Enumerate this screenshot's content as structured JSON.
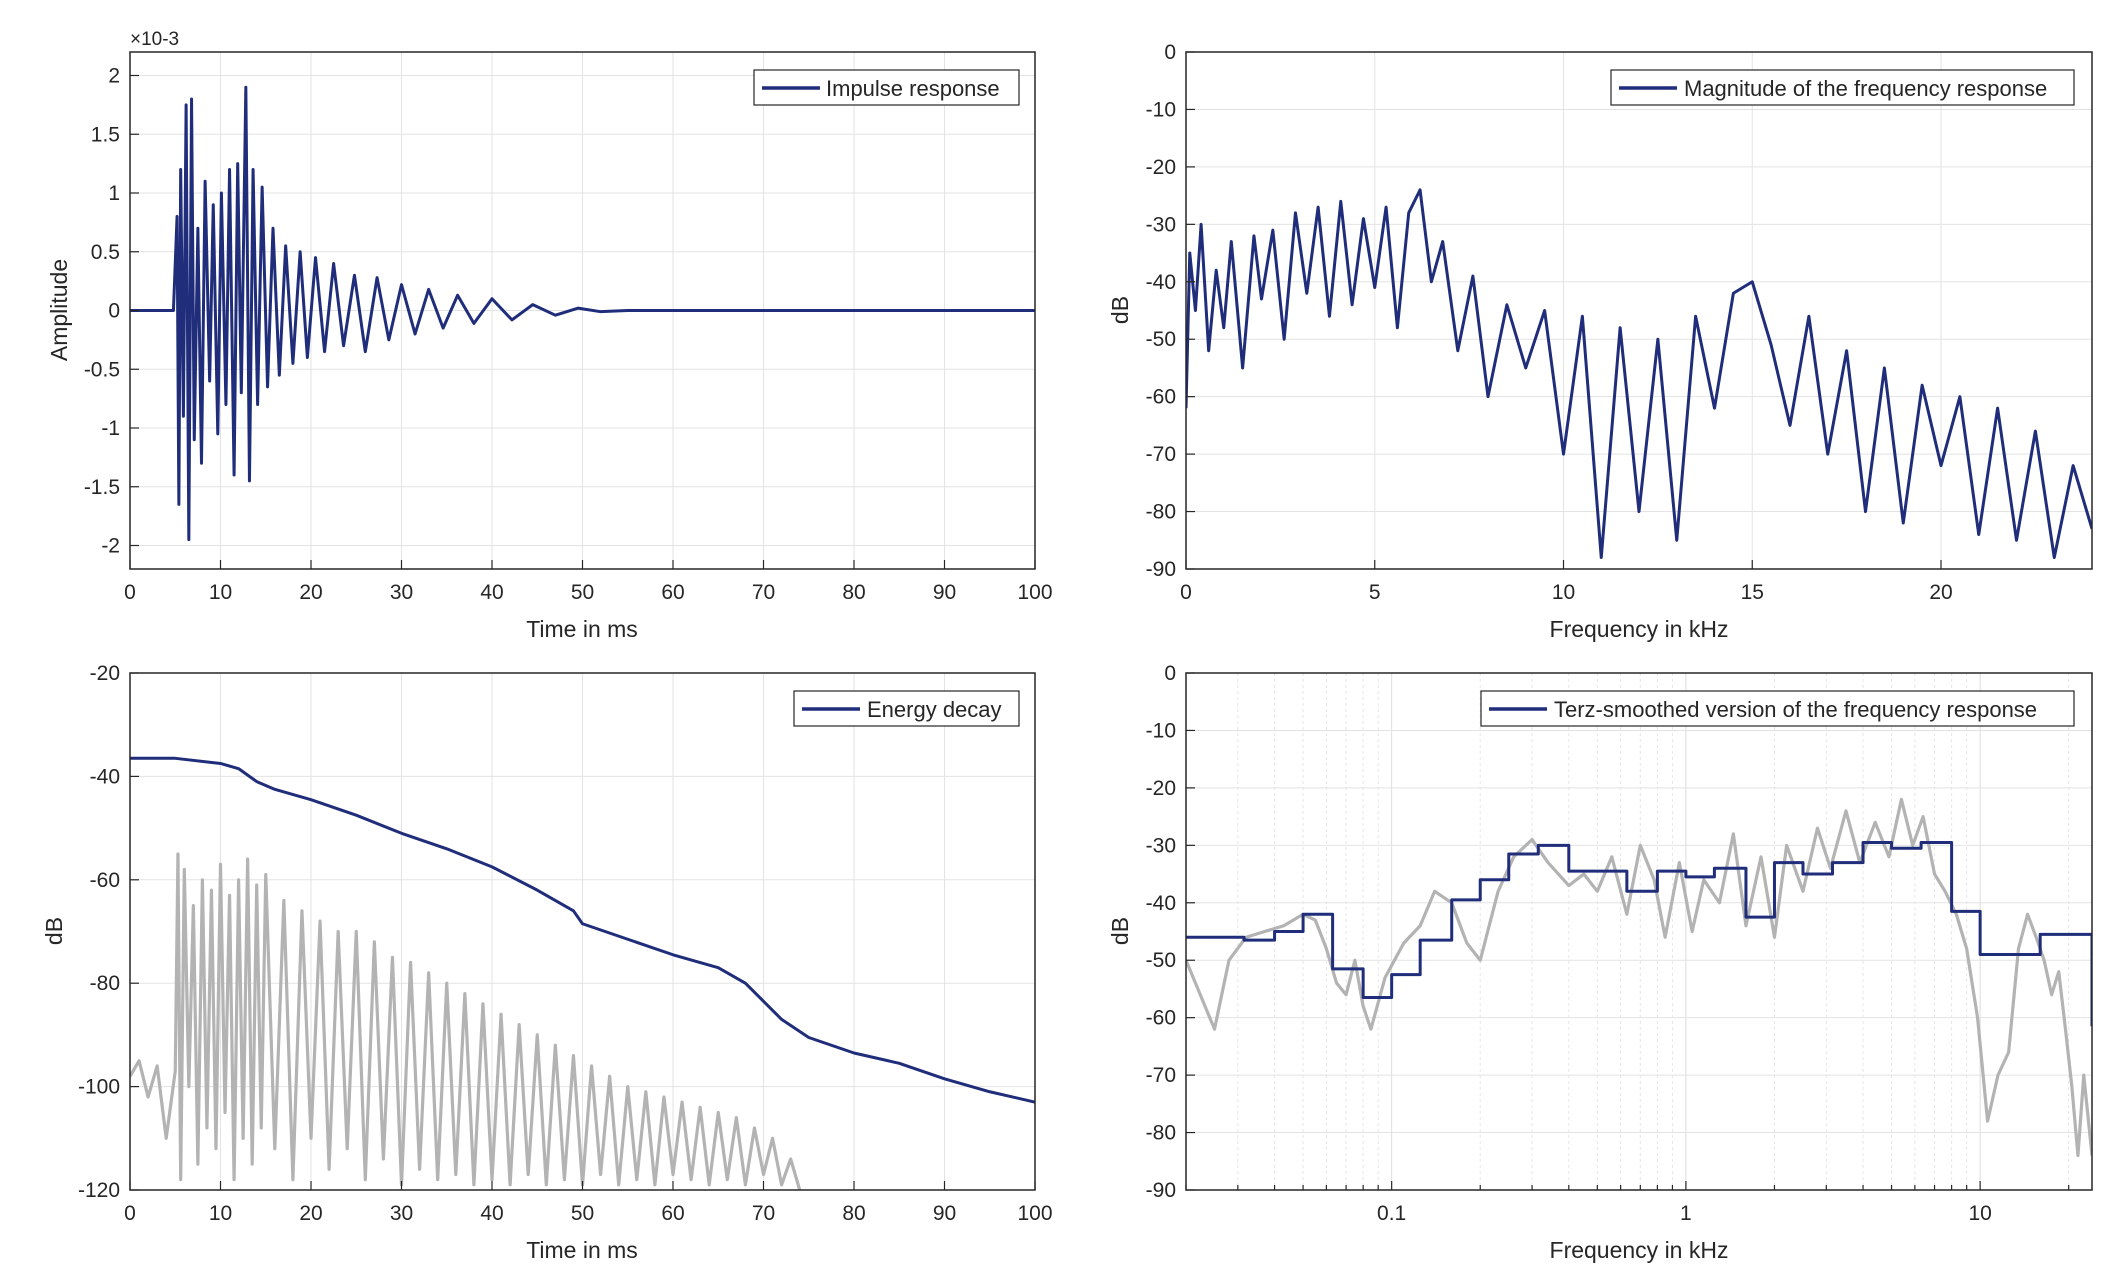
{
  "colors": {
    "series": "#1f2d7a",
    "trace": "#b3b3b3",
    "grid": "#e3e3e3",
    "axis": "#262626"
  },
  "chart_data": [
    {
      "id": "impulse",
      "type": "line",
      "xlabel": "Time in ms",
      "ylabel": "Amplitude",
      "exponent": "×10-3",
      "xlim": [
        0,
        100
      ],
      "ylim": [
        -2.2,
        2.2
      ],
      "xscale": "linear",
      "grid": true,
      "legend_position": "top-right",
      "xticks": [
        0,
        10,
        20,
        30,
        40,
        50,
        60,
        70,
        80,
        90,
        100
      ],
      "xtick_labels": [
        "0",
        "10",
        "20",
        "30",
        "40",
        "50",
        "60",
        "70",
        "80",
        "90",
        "100"
      ],
      "yticks": [
        2,
        1.5,
        1,
        0.5,
        0,
        -0.5,
        -1,
        -1.5,
        -2
      ],
      "ytick_labels": [
        "2",
        "1.5",
        "1",
        "0.5",
        "0",
        "-0.5",
        "-1",
        "-1.5",
        "-2"
      ],
      "series": [
        {
          "name": "Impulse response",
          "color": "#1f2d7a",
          "x": [
            0,
            4.8,
            5.2,
            5.4,
            5.6,
            5.9,
            6.2,
            6.5,
            6.8,
            7.1,
            7.5,
            7.9,
            8.3,
            8.8,
            9.2,
            9.7,
            10.1,
            10.6,
            11.0,
            11.5,
            11.9,
            12.3,
            12.8,
            13.2,
            13.6,
            14.1,
            14.6,
            15.2,
            15.8,
            16.5,
            17.2,
            18.0,
            18.8,
            19.6,
            20.5,
            21.5,
            22.5,
            23.6,
            24.8,
            26.0,
            27.3,
            28.6,
            30.0,
            31.5,
            33.0,
            34.6,
            36.2,
            38.0,
            40.0,
            42.2,
            44.5,
            47.0,
            49.5,
            52.0,
            55,
            60,
            70,
            80,
            90,
            100
          ],
          "y": [
            0.0,
            0.0,
            0.8,
            -1.65,
            1.2,
            -0.9,
            1.75,
            -1.95,
            1.8,
            -1.1,
            0.7,
            -1.3,
            1.1,
            -0.6,
            0.9,
            -1.05,
            1.0,
            -0.8,
            1.2,
            -1.4,
            1.25,
            -0.7,
            1.9,
            -1.45,
            1.2,
            -0.8,
            1.05,
            -0.65,
            0.7,
            -0.55,
            0.55,
            -0.45,
            0.5,
            -0.4,
            0.45,
            -0.35,
            0.4,
            -0.3,
            0.3,
            -0.35,
            0.28,
            -0.25,
            0.22,
            -0.2,
            0.18,
            -0.15,
            0.13,
            -0.11,
            0.1,
            -0.08,
            0.05,
            -0.04,
            0.02,
            -0.01,
            0.0,
            0.0,
            0.0,
            0.0,
            0.0,
            0.0
          ]
        }
      ]
    },
    {
      "id": "magnitude",
      "type": "line",
      "xlabel": "Frequency in kHz",
      "ylabel": "dB",
      "xlim": [
        0,
        24
      ],
      "ylim": [
        -90,
        0
      ],
      "xscale": "linear",
      "grid": true,
      "legend_position": "top-right",
      "xticks": [
        0,
        5,
        10,
        15,
        20
      ],
      "xtick_labels": [
        "0",
        "5",
        "10",
        "15",
        "20"
      ],
      "yticks": [
        0,
        -10,
        -20,
        -30,
        -40,
        -50,
        -60,
        -70,
        -80,
        -90
      ],
      "ytick_labels": [
        "0",
        "-10",
        "-20",
        "-30",
        "-40",
        "-50",
        "-60",
        "-70",
        "-80",
        "-90"
      ],
      "series": [
        {
          "name": "Magnitude of the frequency response",
          "color": "#1f2d7a",
          "x": [
            0,
            0.1,
            0.25,
            0.4,
            0.6,
            0.8,
            1.0,
            1.2,
            1.5,
            1.8,
            2.0,
            2.3,
            2.6,
            2.9,
            3.2,
            3.5,
            3.8,
            4.1,
            4.4,
            4.7,
            5.0,
            5.3,
            5.6,
            5.9,
            6.2,
            6.5,
            6.8,
            7.2,
            7.6,
            8.0,
            8.5,
            9.0,
            9.5,
            10.0,
            10.5,
            11.0,
            11.5,
            12.0,
            12.5,
            13.0,
            13.5,
            14.0,
            14.5,
            15.0,
            15.5,
            16.0,
            16.5,
            17.0,
            17.5,
            18.0,
            18.5,
            19.0,
            19.5,
            20.0,
            20.5,
            21.0,
            21.5,
            22.0,
            22.5,
            23.0,
            23.5,
            24.0
          ],
          "y": [
            -62,
            -35,
            -45,
            -30,
            -52,
            -38,
            -48,
            -33,
            -55,
            -32,
            -43,
            -31,
            -50,
            -28,
            -42,
            -27,
            -46,
            -26,
            -44,
            -29,
            -41,
            -27,
            -48,
            -28,
            -24,
            -40,
            -33,
            -52,
            -39,
            -60,
            -44,
            -55,
            -45,
            -70,
            -46,
            -88,
            -48,
            -80,
            -50,
            -85,
            -46,
            -62,
            -42,
            -40,
            -51,
            -65,
            -46,
            -70,
            -52,
            -80,
            -55,
            -82,
            -58,
            -72,
            -60,
            -84,
            -62,
            -85,
            -66,
            -88,
            -72,
            -83
          ]
        }
      ]
    },
    {
      "id": "energy",
      "type": "line",
      "xlabel": "Time in ms",
      "ylabel": "dB",
      "xlim": [
        0,
        100
      ],
      "ylim": [
        -120,
        -20
      ],
      "xscale": "linear",
      "grid": true,
      "legend_position": "top-right",
      "xticks": [
        0,
        10,
        20,
        30,
        40,
        50,
        60,
        70,
        80,
        90,
        100
      ],
      "xtick_labels": [
        "0",
        "10",
        "20",
        "30",
        "40",
        "50",
        "60",
        "70",
        "80",
        "90",
        "100"
      ],
      "yticks": [
        -20,
        -40,
        -60,
        -80,
        -100,
        -120
      ],
      "ytick_labels": [
        "-20",
        "-40",
        "-60",
        "-80",
        "-100",
        "-120"
      ],
      "series": [
        {
          "name": "Energy decay",
          "color": "#1f2d7a",
          "x": [
            0,
            5,
            10,
            12,
            14,
            16,
            20,
            25,
            30,
            35,
            40,
            45,
            49,
            50,
            55,
            60,
            63,
            65,
            68,
            70,
            72,
            75,
            80,
            85,
            90,
            95,
            100
          ],
          "y": [
            -36.5,
            -36.5,
            -37.5,
            -38.5,
            -41,
            -42.5,
            -44.5,
            -47.5,
            -51,
            -54,
            -57.5,
            -62,
            -66,
            -68.5,
            -71.5,
            -74.5,
            -76,
            -77,
            -80,
            -83.5,
            -87,
            -90.5,
            -93.5,
            -95.5,
            -98.5,
            -101,
            -103
          ]
        },
        {
          "color": "#b3b3b3",
          "x": [
            0,
            1,
            2,
            3,
            4,
            5,
            5.3,
            5.6,
            6,
            6.5,
            7,
            7.5,
            8,
            8.5,
            9,
            9.5,
            10,
            10.5,
            11,
            11.5,
            12,
            12.5,
            13,
            13.5,
            14,
            14.5,
            15,
            16,
            17,
            18,
            19,
            20,
            21,
            22,
            23,
            24,
            25,
            26,
            27,
            28,
            29,
            30,
            31,
            32,
            33,
            34,
            35,
            36,
            37,
            38,
            39,
            40,
            41,
            42,
            43,
            44,
            45,
            46,
            47,
            48,
            49,
            50,
            51,
            52,
            53,
            54,
            55,
            56,
            57,
            58,
            59,
            60,
            61,
            62,
            63,
            64,
            65,
            66,
            67,
            68,
            69,
            70,
            71,
            72,
            73,
            74
          ],
          "y": [
            -98,
            -95,
            -102,
            -96,
            -110,
            -97,
            -55,
            -118,
            -58,
            -100,
            -65,
            -115,
            -60,
            -108,
            -62,
            -112,
            -57,
            -105,
            -63,
            -118,
            -60,
            -110,
            -56,
            -115,
            -61,
            -108,
            -59,
            -112,
            -64,
            -118,
            -66,
            -110,
            -68,
            -116,
            -70,
            -112,
            -70,
            -118,
            -72,
            -114,
            -75,
            -119,
            -76,
            -116,
            -78,
            -118,
            -80,
            -117,
            -82,
            -119,
            -84,
            -118,
            -86,
            -119,
            -88,
            -117,
            -90,
            -119,
            -92,
            -118,
            -94,
            -119,
            -96,
            -117,
            -98,
            -119,
            -100,
            -118,
            -101,
            -119,
            -102,
            -117,
            -103,
            -118,
            -104,
            -119,
            -105,
            -118,
            -106,
            -119,
            -108,
            -117,
            -110,
            -119,
            -114,
            -120
          ]
        }
      ]
    },
    {
      "id": "terz",
      "type": "line",
      "xlabel": "Frequency in kHz",
      "ylabel": "dB",
      "xlim": [
        0.02,
        24
      ],
      "ylim": [
        -90,
        0
      ],
      "xscale": "log",
      "grid": true,
      "legend_position": "top-right",
      "xticks": [
        0.1,
        1,
        10
      ],
      "xtick_labels": [
        "0.1",
        "1",
        "10"
      ],
      "yticks": [
        0,
        -10,
        -20,
        -30,
        -40,
        -50,
        -60,
        -70,
        -80,
        -90
      ],
      "ytick_labels": [
        "0",
        "-10",
        "-20",
        "-30",
        "-40",
        "-50",
        "-60",
        "-70",
        "-80",
        "-90"
      ],
      "series": [
        {
          "name": "Terz-smoothed version of the frequency response",
          "color": "#1f2d7a",
          "step_edges": [
            0.02,
            0.0315,
            0.04,
            0.05,
            0.063,
            0.08,
            0.1,
            0.125,
            0.16,
            0.2,
            0.25,
            0.315,
            0.4,
            0.5,
            0.63,
            0.8,
            1.0,
            1.25,
            1.6,
            2.0,
            2.5,
            3.15,
            4.0,
            5.0,
            6.3,
            8.0,
            10.0,
            12.5,
            16.0,
            24.0
          ],
          "step_values": [
            -46,
            -46.5,
            -45,
            -42,
            -51.5,
            -56.5,
            -52.5,
            -46.5,
            -39.5,
            -36,
            -31.5,
            -30,
            -34.5,
            -34.5,
            -38,
            -34.5,
            -35.5,
            -34,
            -42.5,
            -33,
            -35,
            -33,
            -29.5,
            -30.5,
            -29.5,
            -41.5,
            -49,
            -49,
            -45.5,
            -61.5
          ]
        },
        {
          "color": "#b3b3b3",
          "x": [
            0.02,
            0.025,
            0.028,
            0.032,
            0.037,
            0.043,
            0.05,
            0.055,
            0.06,
            0.065,
            0.07,
            0.075,
            0.08,
            0.085,
            0.095,
            0.11,
            0.125,
            0.14,
            0.16,
            0.18,
            0.2,
            0.23,
            0.26,
            0.3,
            0.34,
            0.4,
            0.45,
            0.5,
            0.56,
            0.63,
            0.7,
            0.78,
            0.85,
            0.95,
            1.05,
            1.15,
            1.3,
            1.45,
            1.6,
            1.8,
            2.0,
            2.2,
            2.5,
            2.8,
            3.1,
            3.5,
            3.9,
            4.4,
            4.9,
            5.4,
            5.9,
            6.4,
            7.0,
            7.6,
            8.3,
            9.0,
            9.8,
            10.6,
            11.5,
            12.5,
            13.5,
            14.5,
            15.5,
            16.5,
            17.5,
            18.5,
            19.5,
            20.5,
            21.5,
            22.5,
            24
          ],
          "y": [
            -50,
            -62,
            -50,
            -46,
            -45,
            -44,
            -42,
            -43,
            -48,
            -54,
            -56,
            -50,
            -58,
            -62,
            -53,
            -47,
            -44,
            -38,
            -40,
            -47,
            -50,
            -38,
            -32,
            -29,
            -33,
            -37,
            -35,
            -38,
            -32,
            -42,
            -30,
            -36,
            -46,
            -33,
            -45,
            -36,
            -40,
            -28,
            -44,
            -32,
            -46,
            -30,
            -38,
            -27,
            -34,
            -24,
            -33,
            -26,
            -32,
            -22,
            -30,
            -25,
            -35,
            -38,
            -42,
            -48,
            -60,
            -78,
            -70,
            -66,
            -48,
            -42,
            -46,
            -50,
            -56,
            -52,
            -62,
            -72,
            -84,
            -70,
            -84
          ]
        }
      ]
    }
  ]
}
